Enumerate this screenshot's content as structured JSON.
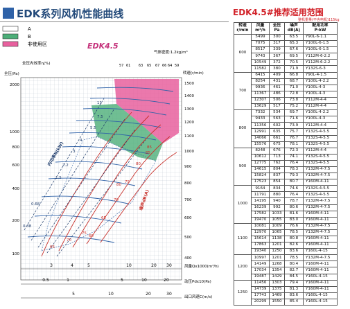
{
  "header": {
    "title": "EDK系列风机性能曲线",
    "table_title": "EDK4.5#推荐适用范围",
    "table_subtitle": "整机重量(不含电机)115kg"
  },
  "chart": {
    "model": "EDK4.5",
    "density_note": "气体密度:1.2kg/m³",
    "legend": [
      {
        "label": "A",
        "color": "#ffffff"
      },
      {
        "label": "B",
        "color": "#4cae78"
      },
      {
        "label": "非使用区",
        "color": "#e8609e"
      }
    ],
    "left_axis_title": "全压(Pa)",
    "left_ticks": [
      2000,
      1000,
      800,
      600,
      400,
      200,
      100
    ],
    "right_axis_title": "转速(r/min)",
    "right_ticks": [
      1500,
      1400,
      1300,
      1200,
      1100,
      1000,
      900,
      800,
      700,
      600,
      500,
      400
    ],
    "eff_axis_title": "全压内效率η(%)",
    "eff_top_labels": [
      "57",
      "61",
      "63",
      "65",
      "67",
      "66",
      "64",
      "59"
    ],
    "eff_mid_labels": [
      "65",
      "70",
      "75",
      "80",
      "85"
    ],
    "power_axis_label": "内功率N(kW)",
    "power_labels": [
      "11",
      "7.5",
      "5.5",
      "4",
      "3",
      "2.2",
      "1.5",
      "0.68",
      "0.38"
    ],
    "noise_axis_label": "噪声dB(A)",
    "noise_labels": [
      "85",
      "80",
      "75",
      "70",
      "65",
      "60"
    ],
    "flow_axis_title": "风量Qx1000(m³/h)",
    "flow_ticks": [
      "3",
      "4",
      "5",
      "10",
      "20",
      "30"
    ],
    "dyn_axis_title": "动压Pdx10(Pa)",
    "dyn_ticks": [
      "0.5",
      "1",
      "5",
      "10",
      "20"
    ],
    "vel_axis_title": "出口风速C(m/s)",
    "vel_ticks": [
      "5",
      "10",
      "20",
      "30"
    ]
  },
  "table": {
    "headers": [
      "转速\nr/min",
      "风量\nm³/h",
      "全压\nPa",
      "噪声\ndB(A)",
      "配用功率\nP-kW"
    ],
    "groups": [
      {
        "speed": "600",
        "rows": [
          [
            "5499",
            "300",
            "63.5",
            "Y90L-6-1.1"
          ],
          [
            "7075",
            "317",
            "65.3",
            "Y100L-6-1.5"
          ],
          [
            "8517",
            "339",
            "67.6",
            "Y100L-6-1.5"
          ],
          [
            "9743",
            "367",
            "69.5",
            "Y112M-6-2.2"
          ],
          [
            "10549",
            "372",
            "70.5",
            "Y112M-6-2.2"
          ],
          [
            "11582",
            "380",
            "71.9",
            "Y132S-6-3"
          ]
        ]
      },
      {
        "speed": "700",
        "rows": [
          [
            "6415",
            "409",
            "66.8",
            "Y90L-4-1.5"
          ],
          [
            "8254",
            "431",
            "68.7",
            "Y100L-4-2.2"
          ],
          [
            "9936",
            "461",
            "71.0",
            "Y100L-4-3"
          ],
          [
            "11367",
            "486",
            "72.8",
            "Y100L-4-3"
          ],
          [
            "12307",
            "506",
            "73.8",
            "Y112M-4-4"
          ],
          [
            "13629",
            "517",
            "75.2",
            "Y112M-4-4"
          ]
        ]
      },
      {
        "speed": "800",
        "rows": [
          [
            "7332",
            "534",
            "69.7",
            "Y100L-4-2.2"
          ],
          [
            "9433",
            "563",
            "71.6",
            "Y100L-4-3"
          ],
          [
            "11356",
            "602",
            "73.9",
            "Y112M-4-4"
          ],
          [
            "12991",
            "635",
            "75.7",
            "Y132S-4-5.5"
          ],
          [
            "14066",
            "661",
            "76.7",
            "Y132S-4-5.5"
          ],
          [
            "15576",
            "675",
            "78.1",
            "Y132S-4-5.5"
          ]
        ]
      },
      {
        "speed": "900",
        "rows": [
          [
            "8248",
            "676",
            "72.3",
            "Y112M-4-4"
          ],
          [
            "10612",
            "713",
            "74.1",
            "Y132S-4-5.5"
          ],
          [
            "12775",
            "762",
            "76.4",
            "Y132S-4-5.5"
          ],
          [
            "14615",
            "804",
            "78.3",
            "Y132M-4-7.5"
          ],
          [
            "15824",
            "837",
            "79.3",
            "Y132M-4-7.5"
          ],
          [
            "17523",
            "854",
            "80.7",
            "Y160M-4-11"
          ]
        ]
      },
      {
        "speed": "1000",
        "rows": [
          [
            "9164",
            "834",
            "74.6",
            "Y132S-4-5.5"
          ],
          [
            "11791",
            "880",
            "76.4",
            "Y132S-4-5.5"
          ],
          [
            "14195",
            "940",
            "78.7",
            "Y132M-4-7.5"
          ],
          [
            "16239",
            "992",
            "80.6",
            "Y132M-4-7.5"
          ],
          [
            "17582",
            "1033",
            "81.6",
            "Y160M-4-11"
          ],
          [
            "19470",
            "1055",
            "83.0",
            "Y160M-4-11"
          ]
        ]
      },
      {
        "speed": "1100",
        "rows": [
          [
            "10081",
            "1009",
            "76.6",
            "Y132M-4-7.5"
          ],
          [
            "12970",
            "1065",
            "78.5",
            "Y132M-4-7.5"
          ],
          [
            "15614",
            "1138",
            "80.8",
            "Y160M-4-11"
          ],
          [
            "17863",
            "1201",
            "82.6",
            "Y160M-4-11"
          ],
          [
            "19340",
            "1250",
            "83.6",
            "Y160L-4-15"
          ]
        ]
      },
      {
        "speed": "1200",
        "rows": [
          [
            "10997",
            "1201",
            "78.5",
            "Y132M-4-7.5"
          ],
          [
            "14149",
            "1268",
            "80.4",
            "Y160M-4-11"
          ],
          [
            "17034",
            "1354",
            "82.7",
            "Y160M-4-11"
          ],
          [
            "19487",
            "1429",
            "84.5",
            "Y160L-4-15"
          ]
        ]
      },
      {
        "speed": "1250",
        "rows": [
          [
            "11456",
            "1303",
            "79.4",
            "Y160M-4-11"
          ],
          [
            "14739",
            "1375",
            "81.3",
            "Y160M-4-11"
          ],
          [
            "17743",
            "1469",
            "83.6",
            "Y160L-4-15"
          ],
          [
            "20299",
            "1550",
            "85.4",
            "Y160L-4-15"
          ]
        ]
      }
    ]
  }
}
